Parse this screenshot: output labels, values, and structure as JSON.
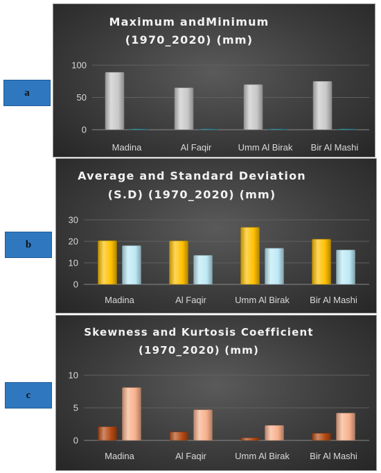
{
  "labels": {
    "a": "a",
    "b": "b",
    "c": "c"
  },
  "chart_data": [
    {
      "id": "a",
      "type": "bar",
      "title_lines": [
        "Maximum andMinimum",
        "(1970_2020) (mm)"
      ],
      "categories": [
        "Madina",
        "Al Faqir",
        "Umm Al Birak",
        "Bir Al Mashi"
      ],
      "series": [
        {
          "values": [
            89,
            65,
            70,
            75
          ],
          "color": "#c8c8c8"
        },
        {
          "values": [
            0.5,
            0.5,
            0.2,
            0.2
          ],
          "color": "#2aa0b5"
        }
      ],
      "yticks": [
        0,
        50,
        100
      ],
      "ylim": [
        0,
        100
      ],
      "grid": true,
      "legend": "none"
    },
    {
      "id": "b",
      "type": "bar",
      "title_lines": [
        "Average and Standard Deviation",
        "(S.D) (1970_2020) (mm)"
      ],
      "categories": [
        "Madina",
        "Al Faqir",
        "Umm Al Birak",
        "Bir Al Mashi"
      ],
      "series": [
        {
          "values": [
            20.3,
            20.2,
            26.5,
            21
          ],
          "color": "#ffc000"
        },
        {
          "values": [
            18,
            13.5,
            16.8,
            16
          ],
          "color": "#bde9f5"
        }
      ],
      "yticks": [
        0,
        10,
        20,
        30
      ],
      "ylim": [
        0,
        30
      ],
      "grid": true,
      "legend": "none"
    },
    {
      "id": "c",
      "type": "bar",
      "title_lines": [
        "Skewness and Kurtosis Coefficient",
        "(1970_2020) (mm)"
      ],
      "categories": [
        "Madina",
        "Al Faqir",
        "Umm Al Birak",
        "Bir Al Mashi"
      ],
      "series": [
        {
          "values": [
            2.1,
            1.3,
            0.4,
            1.1
          ],
          "color": "#b44a14"
        },
        {
          "values": [
            8.1,
            4.7,
            2.3,
            4.2
          ],
          "color": "#f7b08c"
        }
      ],
      "yticks": [
        0,
        5,
        10
      ],
      "ylim": [
        0,
        10
      ],
      "grid": true,
      "legend": "none"
    }
  ]
}
